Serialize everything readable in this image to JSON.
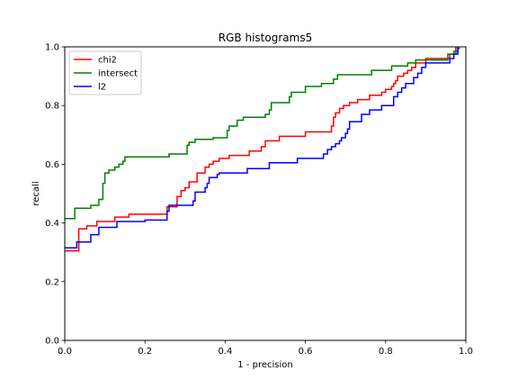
{
  "chart_data": {
    "type": "line",
    "title": "RGB histograms5",
    "xlabel": "1 - precision",
    "ylabel": "recall",
    "xlim": [
      0,
      1
    ],
    "ylim": [
      0,
      1
    ],
    "xticks": [
      "0.0",
      "0.2",
      "0.4",
      "0.6",
      "0.8",
      "1.0"
    ],
    "yticks": [
      "0.0",
      "0.2",
      "0.4",
      "0.6",
      "0.8",
      "1.0"
    ],
    "grid": false,
    "legend_position": "top-left",
    "series": [
      {
        "name": "chi2",
        "color": "#ff0000",
        "points": [
          [
            0,
            0.305
          ],
          [
            0.035,
            0.305
          ],
          [
            0.035,
            0.38
          ],
          [
            0.055,
            0.38
          ],
          [
            0.055,
            0.39
          ],
          [
            0.08,
            0.39
          ],
          [
            0.08,
            0.405
          ],
          [
            0.125,
            0.405
          ],
          [
            0.125,
            0.42
          ],
          [
            0.16,
            0.42
          ],
          [
            0.16,
            0.43
          ],
          [
            0.255,
            0.43
          ],
          [
            0.255,
            0.455
          ],
          [
            0.28,
            0.455
          ],
          [
            0.28,
            0.49
          ],
          [
            0.29,
            0.49
          ],
          [
            0.29,
            0.51
          ],
          [
            0.3,
            0.51
          ],
          [
            0.3,
            0.52
          ],
          [
            0.31,
            0.52
          ],
          [
            0.31,
            0.54
          ],
          [
            0.33,
            0.54
          ],
          [
            0.33,
            0.57
          ],
          [
            0.35,
            0.57
          ],
          [
            0.35,
            0.59
          ],
          [
            0.36,
            0.59
          ],
          [
            0.36,
            0.6
          ],
          [
            0.37,
            0.6
          ],
          [
            0.37,
            0.61
          ],
          [
            0.385,
            0.61
          ],
          [
            0.385,
            0.62
          ],
          [
            0.41,
            0.62
          ],
          [
            0.41,
            0.63
          ],
          [
            0.46,
            0.63
          ],
          [
            0.46,
            0.645
          ],
          [
            0.49,
            0.645
          ],
          [
            0.49,
            0.66
          ],
          [
            0.5,
            0.66
          ],
          [
            0.5,
            0.68
          ],
          [
            0.535,
            0.68
          ],
          [
            0.535,
            0.695
          ],
          [
            0.6,
            0.695
          ],
          [
            0.6,
            0.71
          ],
          [
            0.665,
            0.71
          ],
          [
            0.665,
            0.73
          ],
          [
            0.67,
            0.73
          ],
          [
            0.67,
            0.76
          ],
          [
            0.675,
            0.76
          ],
          [
            0.675,
            0.775
          ],
          [
            0.685,
            0.775
          ],
          [
            0.685,
            0.79
          ],
          [
            0.695,
            0.79
          ],
          [
            0.695,
            0.8
          ],
          [
            0.71,
            0.8
          ],
          [
            0.71,
            0.81
          ],
          [
            0.73,
            0.81
          ],
          [
            0.73,
            0.82
          ],
          [
            0.76,
            0.82
          ],
          [
            0.76,
            0.835
          ],
          [
            0.79,
            0.835
          ],
          [
            0.79,
            0.845
          ],
          [
            0.8,
            0.845
          ],
          [
            0.8,
            0.855
          ],
          [
            0.815,
            0.855
          ],
          [
            0.815,
            0.865
          ],
          [
            0.82,
            0.865
          ],
          [
            0.82,
            0.875
          ],
          [
            0.825,
            0.875
          ],
          [
            0.825,
            0.885
          ],
          [
            0.83,
            0.885
          ],
          [
            0.83,
            0.9
          ],
          [
            0.845,
            0.9
          ],
          [
            0.845,
            0.91
          ],
          [
            0.855,
            0.91
          ],
          [
            0.855,
            0.92
          ],
          [
            0.865,
            0.92
          ],
          [
            0.865,
            0.93
          ],
          [
            0.875,
            0.93
          ],
          [
            0.875,
            0.945
          ],
          [
            0.9,
            0.945
          ],
          [
            0.9,
            0.96
          ],
          [
            0.96,
            0.96
          ],
          [
            0.96,
            0.975
          ],
          [
            0.975,
            0.975
          ],
          [
            0.975,
            1.0
          ]
        ]
      },
      {
        "name": "intersect",
        "color": "#008000",
        "points": [
          [
            0,
            0.415
          ],
          [
            0.025,
            0.415
          ],
          [
            0.025,
            0.45
          ],
          [
            0.065,
            0.45
          ],
          [
            0.065,
            0.46
          ],
          [
            0.085,
            0.46
          ],
          [
            0.085,
            0.48
          ],
          [
            0.095,
            0.48
          ],
          [
            0.095,
            0.535
          ],
          [
            0.1,
            0.535
          ],
          [
            0.1,
            0.57
          ],
          [
            0.11,
            0.57
          ],
          [
            0.11,
            0.58
          ],
          [
            0.125,
            0.58
          ],
          [
            0.125,
            0.59
          ],
          [
            0.135,
            0.59
          ],
          [
            0.135,
            0.6
          ],
          [
            0.145,
            0.6
          ],
          [
            0.145,
            0.61
          ],
          [
            0.15,
            0.61
          ],
          [
            0.15,
            0.625
          ],
          [
            0.26,
            0.625
          ],
          [
            0.26,
            0.635
          ],
          [
            0.305,
            0.635
          ],
          [
            0.305,
            0.665
          ],
          [
            0.31,
            0.665
          ],
          [
            0.31,
            0.675
          ],
          [
            0.325,
            0.675
          ],
          [
            0.325,
            0.685
          ],
          [
            0.37,
            0.685
          ],
          [
            0.37,
            0.69
          ],
          [
            0.405,
            0.69
          ],
          [
            0.405,
            0.715
          ],
          [
            0.41,
            0.715
          ],
          [
            0.41,
            0.73
          ],
          [
            0.43,
            0.73
          ],
          [
            0.43,
            0.75
          ],
          [
            0.445,
            0.75
          ],
          [
            0.445,
            0.76
          ],
          [
            0.5,
            0.76
          ],
          [
            0.5,
            0.77
          ],
          [
            0.51,
            0.77
          ],
          [
            0.51,
            0.785
          ],
          [
            0.515,
            0.785
          ],
          [
            0.515,
            0.81
          ],
          [
            0.56,
            0.81
          ],
          [
            0.56,
            0.83
          ],
          [
            0.565,
            0.83
          ],
          [
            0.565,
            0.845
          ],
          [
            0.6,
            0.845
          ],
          [
            0.6,
            0.865
          ],
          [
            0.64,
            0.865
          ],
          [
            0.64,
            0.875
          ],
          [
            0.67,
            0.875
          ],
          [
            0.67,
            0.89
          ],
          [
            0.68,
            0.89
          ],
          [
            0.68,
            0.905
          ],
          [
            0.765,
            0.905
          ],
          [
            0.765,
            0.92
          ],
          [
            0.815,
            0.92
          ],
          [
            0.815,
            0.935
          ],
          [
            0.855,
            0.935
          ],
          [
            0.855,
            0.945
          ],
          [
            0.875,
            0.945
          ],
          [
            0.875,
            0.955
          ],
          [
            0.955,
            0.955
          ],
          [
            0.955,
            0.975
          ],
          [
            0.97,
            0.975
          ],
          [
            0.97,
            0.985
          ],
          [
            0.98,
            0.985
          ],
          [
            0.98,
            1.0
          ]
        ]
      },
      {
        "name": "l2",
        "color": "#0000ff",
        "points": [
          [
            0,
            0.315
          ],
          [
            0.03,
            0.315
          ],
          [
            0.03,
            0.335
          ],
          [
            0.065,
            0.335
          ],
          [
            0.065,
            0.36
          ],
          [
            0.085,
            0.36
          ],
          [
            0.085,
            0.385
          ],
          [
            0.13,
            0.385
          ],
          [
            0.13,
            0.405
          ],
          [
            0.2,
            0.405
          ],
          [
            0.2,
            0.41
          ],
          [
            0.255,
            0.41
          ],
          [
            0.255,
            0.44
          ],
          [
            0.26,
            0.44
          ],
          [
            0.26,
            0.46
          ],
          [
            0.32,
            0.46
          ],
          [
            0.32,
            0.475
          ],
          [
            0.325,
            0.475
          ],
          [
            0.325,
            0.505
          ],
          [
            0.35,
            0.505
          ],
          [
            0.35,
            0.52
          ],
          [
            0.355,
            0.52
          ],
          [
            0.355,
            0.535
          ],
          [
            0.36,
            0.535
          ],
          [
            0.36,
            0.555
          ],
          [
            0.38,
            0.555
          ],
          [
            0.38,
            0.565
          ],
          [
            0.385,
            0.565
          ],
          [
            0.385,
            0.57
          ],
          [
            0.455,
            0.57
          ],
          [
            0.455,
            0.585
          ],
          [
            0.51,
            0.585
          ],
          [
            0.51,
            0.605
          ],
          [
            0.58,
            0.605
          ],
          [
            0.58,
            0.62
          ],
          [
            0.645,
            0.62
          ],
          [
            0.645,
            0.635
          ],
          [
            0.655,
            0.635
          ],
          [
            0.655,
            0.65
          ],
          [
            0.665,
            0.65
          ],
          [
            0.665,
            0.66
          ],
          [
            0.675,
            0.66
          ],
          [
            0.675,
            0.67
          ],
          [
            0.685,
            0.67
          ],
          [
            0.685,
            0.68
          ],
          [
            0.69,
            0.68
          ],
          [
            0.69,
            0.69
          ],
          [
            0.7,
            0.69
          ],
          [
            0.7,
            0.705
          ],
          [
            0.705,
            0.705
          ],
          [
            0.705,
            0.72
          ],
          [
            0.71,
            0.72
          ],
          [
            0.71,
            0.745
          ],
          [
            0.74,
            0.745
          ],
          [
            0.74,
            0.77
          ],
          [
            0.76,
            0.77
          ],
          [
            0.76,
            0.785
          ],
          [
            0.79,
            0.785
          ],
          [
            0.79,
            0.8
          ],
          [
            0.82,
            0.8
          ],
          [
            0.82,
            0.83
          ],
          [
            0.83,
            0.83
          ],
          [
            0.83,
            0.845
          ],
          [
            0.84,
            0.845
          ],
          [
            0.84,
            0.86
          ],
          [
            0.85,
            0.86
          ],
          [
            0.85,
            0.875
          ],
          [
            0.87,
            0.875
          ],
          [
            0.87,
            0.895
          ],
          [
            0.88,
            0.895
          ],
          [
            0.88,
            0.91
          ],
          [
            0.89,
            0.91
          ],
          [
            0.89,
            0.93
          ],
          [
            0.9,
            0.93
          ],
          [
            0.9,
            0.945
          ],
          [
            0.96,
            0.945
          ],
          [
            0.96,
            0.96
          ],
          [
            0.97,
            0.96
          ],
          [
            0.97,
            0.975
          ],
          [
            0.98,
            0.975
          ],
          [
            0.98,
            0.995
          ],
          [
            0.985,
            0.995
          ]
        ]
      }
    ]
  }
}
